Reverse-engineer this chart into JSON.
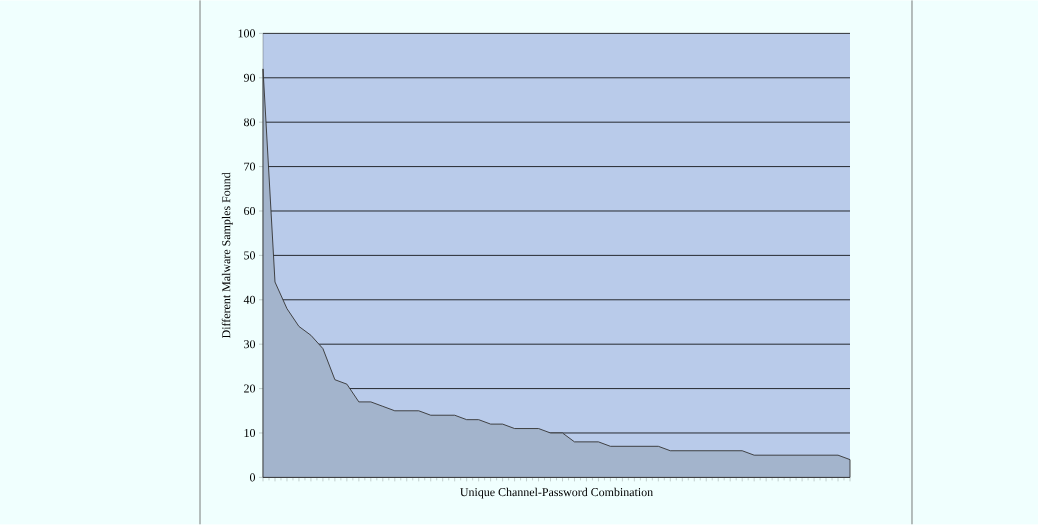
{
  "chart_data": {
    "type": "area",
    "xlabel": "Unique Channel-Password Combination",
    "ylabel": "Different Malware Samples Found",
    "categories": [
      null,
      null,
      null,
      null,
      null,
      null,
      null,
      null,
      null,
      null,
      null,
      null,
      null,
      null,
      null,
      null,
      null,
      null,
      null,
      null,
      null,
      null,
      null,
      null,
      null,
      null,
      null,
      null,
      null,
      null,
      null,
      null,
      null,
      null,
      null,
      null,
      null,
      null,
      null,
      null,
      null,
      null,
      null,
      null,
      null,
      null,
      null,
      null,
      null,
      null
    ],
    "values": [
      92,
      44,
      38,
      34,
      32,
      29,
      22,
      21,
      17,
      17,
      16,
      15,
      15,
      15,
      14,
      14,
      14,
      13,
      13,
      12,
      12,
      11,
      11,
      11,
      10,
      10,
      8,
      8,
      8,
      7,
      7,
      7,
      7,
      7,
      6,
      6,
      6,
      6,
      6,
      6,
      6,
      5,
      5,
      5,
      5,
      5,
      5,
      5,
      5,
      4
    ],
    "color": "#a3b4cc",
    "ylim": [
      0,
      100
    ],
    "yticks": [
      0,
      10,
      20,
      30,
      40,
      50,
      60,
      70,
      80,
      90,
      100
    ],
    "grid": "y"
  }
}
